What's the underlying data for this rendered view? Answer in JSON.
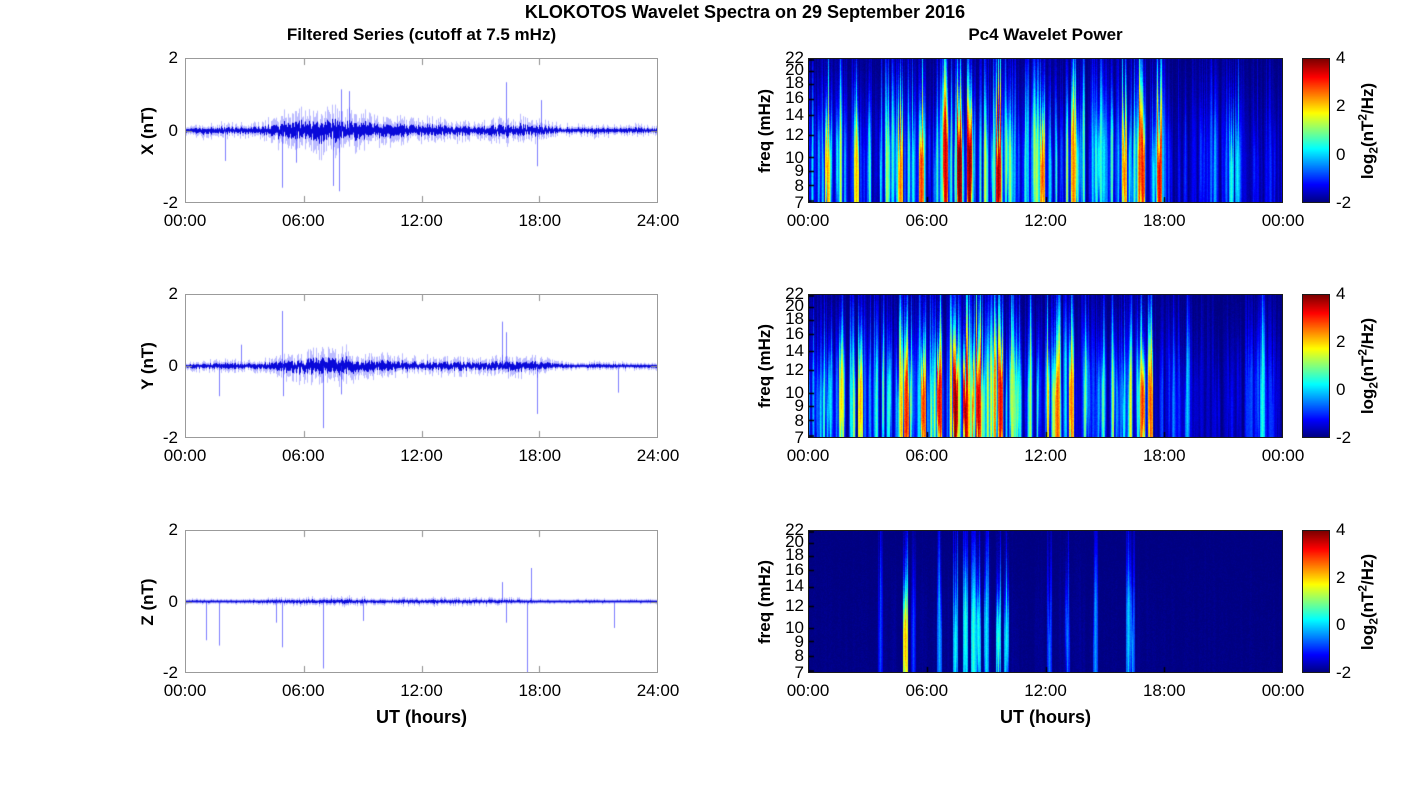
{
  "figure": {
    "title": "KLOKOTOS Wavelet Spectra on 29 September 2016",
    "background": "#ffffff"
  },
  "left_column": {
    "title": "Filtered Series (cutoff at 7.5 mHz)",
    "xlabel": "UT (hours)",
    "xtick_labels": [
      "00:00",
      "06:00",
      "12:00",
      "18:00",
      "24:00"
    ],
    "ytick_labels": [
      "2",
      "0",
      "-2"
    ],
    "ylim_nT": [
      -2,
      2
    ],
    "line_color": "#0000ee"
  },
  "right_column": {
    "title": "Pc4 Wavelet Power",
    "xlabel": "UT (hours)",
    "xtick_labels": [
      "00:00",
      "06:00",
      "12:00",
      "18:00",
      "00:00"
    ],
    "ylabel": "freq (mHz)",
    "freq_tick_labels": [
      "22",
      "20",
      "18",
      "16",
      "14",
      "12",
      "10",
      "9",
      "8",
      "7"
    ],
    "freq_range_mhz": [
      7,
      22
    ],
    "colormap": "jet",
    "clim_log2": [
      -2,
      4
    ]
  },
  "colorbar": {
    "tick_labels": [
      "4",
      "2",
      "0",
      "-2"
    ],
    "label": {
      "p1": "log",
      "sub": "2",
      "p2": "(nT",
      "sup": "2",
      "p3": "/Hz)"
    }
  },
  "chart_data": [
    {
      "type": "line",
      "name": "X filtered magnetic field series",
      "ylabel": "X (nT)",
      "xlim_hours": [
        0,
        24
      ],
      "ylim": [
        -2,
        2
      ],
      "xtick_labels": [
        "00:00",
        "06:00",
        "12:00",
        "18:00",
        "24:00"
      ],
      "ytick_labels": [
        "2",
        "0",
        "-2"
      ],
      "line_color": "#0000ee",
      "amplitude_envelope_hourly_nT": [
        0.18,
        0.22,
        0.22,
        0.2,
        0.3,
        0.55,
        0.6,
        0.8,
        0.75,
        0.55,
        0.45,
        0.4,
        0.4,
        0.35,
        0.3,
        0.3,
        0.4,
        0.4,
        0.35,
        0.2,
        0.18,
        0.2,
        0.18,
        0.18,
        0.15
      ],
      "spikes": [
        {
          "t": 2.0,
          "v": -0.85
        },
        {
          "t": 4.9,
          "v": -1.6
        },
        {
          "t": 5.6,
          "v": -0.9
        },
        {
          "t": 7.5,
          "v": -1.55
        },
        {
          "t": 7.8,
          "v": -1.7
        },
        {
          "t": 7.9,
          "v": 1.15
        },
        {
          "t": 8.3,
          "v": 1.1
        },
        {
          "t": 16.3,
          "v": 1.35
        },
        {
          "t": 17.9,
          "v": -1.0
        },
        {
          "t": 18.1,
          "v": 0.85
        }
      ]
    },
    {
      "type": "line",
      "name": "Y filtered magnetic field series",
      "ylabel": "Y (nT)",
      "xlim_hours": [
        0,
        24
      ],
      "ylim": [
        -2,
        2
      ],
      "xtick_labels": [
        "00:00",
        "06:00",
        "12:00",
        "18:00",
        "24:00"
      ],
      "ytick_labels": [
        "2",
        "0",
        "-2"
      ],
      "line_color": "#0000ee",
      "amplitude_envelope_hourly_nT": [
        0.15,
        0.18,
        0.2,
        0.18,
        0.2,
        0.4,
        0.45,
        0.55,
        0.55,
        0.45,
        0.35,
        0.3,
        0.3,
        0.28,
        0.28,
        0.25,
        0.3,
        0.35,
        0.3,
        0.15,
        0.12,
        0.15,
        0.12,
        0.12,
        0.12
      ],
      "spikes": [
        {
          "t": 1.7,
          "v": -0.85
        },
        {
          "t": 2.8,
          "v": 0.6
        },
        {
          "t": 4.9,
          "v": 1.55
        },
        {
          "t": 4.95,
          "v": -0.85
        },
        {
          "t": 7.0,
          "v": -1.75
        },
        {
          "t": 7.9,
          "v": -0.8
        },
        {
          "t": 16.1,
          "v": 1.25
        },
        {
          "t": 16.3,
          "v": 0.95
        },
        {
          "t": 17.9,
          "v": -1.35
        },
        {
          "t": 22.0,
          "v": -0.75
        }
      ]
    },
    {
      "type": "line",
      "name": "Z filtered magnetic field series",
      "ylabel": "Z (nT)",
      "xlim_hours": [
        0,
        24
      ],
      "ylim": [
        -2,
        2
      ],
      "xtick_labels": [
        "00:00",
        "06:00",
        "12:00",
        "18:00",
        "24:00"
      ],
      "ytick_labels": [
        "2",
        "0",
        "-2"
      ],
      "line_color": "#0000ee",
      "amplitude_envelope_hourly_nT": [
        0.07,
        0.08,
        0.08,
        0.08,
        0.1,
        0.13,
        0.12,
        0.14,
        0.16,
        0.14,
        0.12,
        0.12,
        0.12,
        0.13,
        0.13,
        0.12,
        0.12,
        0.1,
        0.08,
        0.07,
        0.07,
        0.08,
        0.07,
        0.07,
        0.07
      ],
      "spikes": [
        {
          "t": 1.0,
          "v": -1.1
        },
        {
          "t": 1.7,
          "v": -1.25
        },
        {
          "t": 4.6,
          "v": -0.6
        },
        {
          "t": 4.9,
          "v": -1.3
        },
        {
          "t": 7.0,
          "v": -1.9
        },
        {
          "t": 9.0,
          "v": -0.55
        },
        {
          "t": 16.1,
          "v": 0.55
        },
        {
          "t": 16.3,
          "v": -0.6
        },
        {
          "t": 17.4,
          "v": -2.0
        },
        {
          "t": 17.6,
          "v": 0.95
        },
        {
          "t": 21.8,
          "v": -0.75
        }
      ]
    },
    {
      "type": "heatmap",
      "name": "X component Pc4 wavelet power",
      "ylabel": "freq (mHz)",
      "xlim_hours": [
        0,
        24
      ],
      "freq_range_mhz": [
        7,
        22
      ],
      "clim_log2": [
        -2,
        4
      ],
      "colormap": "jet",
      "xtick_labels": [
        "00:00",
        "06:00",
        "12:00",
        "18:00",
        "00:00"
      ],
      "freq_tick_labels": [
        "22",
        "20",
        "18",
        "16",
        "14",
        "12",
        "10",
        "9",
        "8",
        "7"
      ],
      "peak_power_hourly_log2": [
        2.5,
        2.5,
        2.0,
        2.2,
        2.6,
        3.0,
        3.2,
        4.0,
        4.0,
        3.8,
        3.0,
        2.8,
        2.8,
        2.6,
        2.2,
        2.6,
        3.0,
        3.2,
        1.0,
        -0.8,
        -0.5,
        0.8,
        -0.5,
        -0.8,
        -0.8
      ],
      "hot_spots": [
        {
          "t": 0.9,
          "p": 2.4
        },
        {
          "t": 2.4,
          "p": 2.2
        },
        {
          "t": 4.6,
          "p": 2.6
        },
        {
          "t": 5.7,
          "p": 3.0
        },
        {
          "t": 6.9,
          "p": 3.6
        },
        {
          "t": 7.6,
          "p": 4.2
        },
        {
          "t": 8.1,
          "p": 4.0
        },
        {
          "t": 9.6,
          "p": 3.8
        },
        {
          "t": 11.8,
          "p": 2.8
        },
        {
          "t": 13.4,
          "p": 2.6
        },
        {
          "t": 16.0,
          "p": 2.6
        },
        {
          "t": 16.9,
          "p": 3.2
        },
        {
          "t": 17.75,
          "p": 3.4
        },
        {
          "t": 21.4,
          "p": 0.5
        },
        {
          "t": 21.7,
          "p": 0.3
        }
      ]
    },
    {
      "type": "heatmap",
      "name": "Y component Pc4 wavelet power",
      "ylabel": "freq (mHz)",
      "xlim_hours": [
        0,
        24
      ],
      "freq_range_mhz": [
        7,
        22
      ],
      "clim_log2": [
        -2,
        4
      ],
      "colormap": "jet",
      "xtick_labels": [
        "00:00",
        "06:00",
        "12:00",
        "18:00",
        "00:00"
      ],
      "freq_tick_labels": [
        "22",
        "20",
        "18",
        "16",
        "14",
        "12",
        "10",
        "9",
        "8",
        "7"
      ],
      "peak_power_hourly_log2": [
        2.0,
        2.2,
        2.2,
        2.0,
        2.4,
        3.0,
        3.4,
        4.0,
        3.8,
        3.5,
        2.8,
        2.5,
        2.8,
        2.6,
        2.2,
        2.0,
        2.8,
        3.0,
        0.5,
        -1.0,
        -1.2,
        -0.8,
        -0.8,
        0.3,
        -1.2
      ],
      "hot_spots": [
        {
          "t": 1.6,
          "p": 2.0
        },
        {
          "t": 2.6,
          "p": 2.2
        },
        {
          "t": 4.9,
          "p": 3.2
        },
        {
          "t": 5.8,
          "p": 3.0
        },
        {
          "t": 6.6,
          "p": 3.4
        },
        {
          "t": 7.4,
          "p": 4.0
        },
        {
          "t": 7.9,
          "p": 3.8
        },
        {
          "t": 8.6,
          "p": 3.6
        },
        {
          "t": 9.7,
          "p": 3.4
        },
        {
          "t": 12.6,
          "p": 2.8
        },
        {
          "t": 13.3,
          "p": 2.6
        },
        {
          "t": 16.9,
          "p": 3.0
        },
        {
          "t": 17.3,
          "p": 2.8
        },
        {
          "t": 19.2,
          "p": 0.0
        },
        {
          "t": 23.0,
          "p": 0.5
        }
      ]
    },
    {
      "type": "heatmap",
      "name": "Z component Pc4 wavelet power",
      "ylabel": "freq (mHz)",
      "xlim_hours": [
        0,
        24
      ],
      "freq_range_mhz": [
        7,
        22
      ],
      "clim_log2": [
        -2,
        4
      ],
      "colormap": "jet",
      "xtick_labels": [
        "00:00",
        "06:00",
        "12:00",
        "18:00",
        "00:00"
      ],
      "freq_tick_labels": [
        "22",
        "20",
        "18",
        "16",
        "14",
        "12",
        "10",
        "9",
        "8",
        "7"
      ],
      "peak_power_hourly_log2": [
        -1.9,
        -1.9,
        -1.9,
        -1.9,
        -1.8,
        -1.8,
        -1.8,
        -1.7,
        -1.7,
        -1.7,
        -1.8,
        -1.9,
        -1.8,
        -1.8,
        -1.8,
        -1.9,
        -1.8,
        -1.9,
        -1.9,
        -1.9,
        -1.9,
        -1.9,
        -1.9,
        -1.9,
        -1.9
      ],
      "hot_spots": [
        {
          "t": 3.6,
          "p": -0.8
        },
        {
          "t": 4.85,
          "p": 2.2
        },
        {
          "t": 5.3,
          "p": -0.8
        },
        {
          "t": 6.6,
          "p": -0.2
        },
        {
          "t": 7.4,
          "p": 0.3
        },
        {
          "t": 7.9,
          "p": 0.5
        },
        {
          "t": 8.3,
          "p": 0.6
        },
        {
          "t": 8.6,
          "p": 0.4
        },
        {
          "t": 9.0,
          "p": 0.2
        },
        {
          "t": 9.6,
          "p": 0.6
        },
        {
          "t": 10.0,
          "p": 0.3
        },
        {
          "t": 12.2,
          "p": -0.5
        },
        {
          "t": 13.1,
          "p": -0.5
        },
        {
          "t": 14.5,
          "p": -0.3
        },
        {
          "t": 16.2,
          "p": 0.0
        },
        {
          "t": 16.4,
          "p": -0.3
        }
      ]
    }
  ]
}
